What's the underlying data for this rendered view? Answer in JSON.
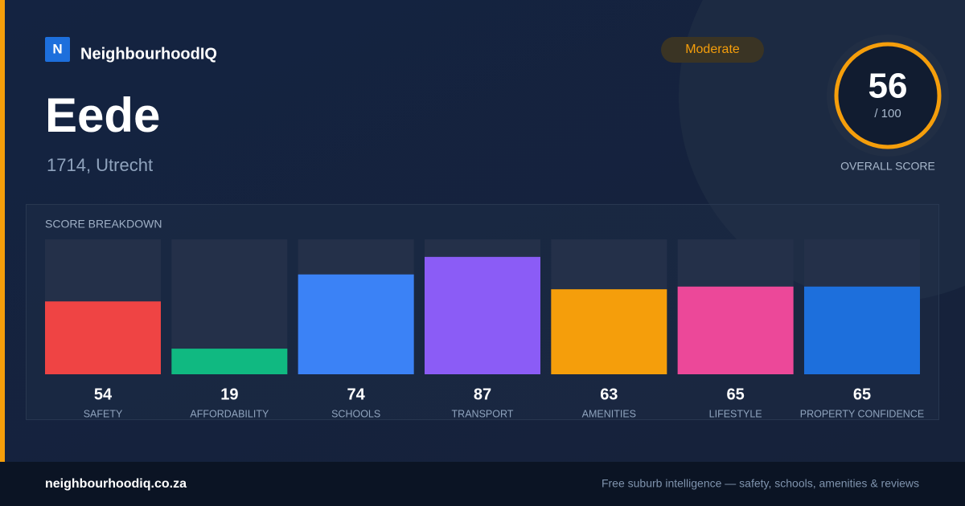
{
  "header": {
    "logo": "N",
    "brand": "NeighbourhoodIQ",
    "badge": "Moderate",
    "title": "Eede",
    "subtitle": "1714, Utrecht"
  },
  "score": {
    "value": 56,
    "max": "/ 100",
    "label": "OVERALL SCORE"
  },
  "chart_data": {
    "type": "bar",
    "title": "SCORE BREAKDOWN",
    "categories": [
      "SAFETY",
      "AFFORDABILITY",
      "SCHOOLS",
      "TRANSPORT",
      "AMENITIES",
      "LIFESTYLE",
      "PROPERTY CONFIDENCE"
    ],
    "values": [
      54,
      19,
      74,
      87,
      63,
      65,
      65
    ],
    "colors": [
      "#ef4444",
      "#10b981",
      "#3b82f6",
      "#8b5cf6",
      "#f59e0b",
      "#ec4899",
      "#1d6fdc"
    ],
    "ylim": [
      0,
      100
    ]
  },
  "footer": {
    "site": "neighbourhoodiq.co.za",
    "tagline": "Free suburb intelligence — safety, schools, amenities & reviews"
  }
}
